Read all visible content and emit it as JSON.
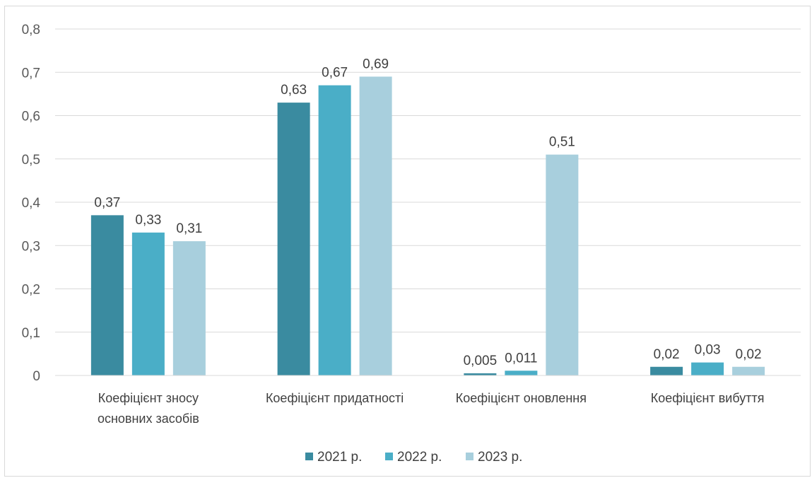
{
  "chart_data": {
    "type": "bar",
    "categories": [
      [
        "Коефіцієнт зносу",
        "основних засобів"
      ],
      [
        "Коефіцієнт придатності"
      ],
      [
        "Коефіцієнт оновлення"
      ],
      [
        "Коефіцієнт вибуття"
      ]
    ],
    "series": [
      {
        "name": "2021 р.",
        "color": "#3a8ba0",
        "values": [
          0.37,
          0.63,
          0.005,
          0.02
        ],
        "labels": [
          "0,37",
          "0,63",
          "0,005",
          "0,02"
        ]
      },
      {
        "name": "2022 р.",
        "color": "#4aaec7",
        "values": [
          0.33,
          0.67,
          0.011,
          0.03
        ],
        "labels": [
          "0,33",
          "0,67",
          "0,011",
          "0,03"
        ]
      },
      {
        "name": "2023 р.",
        "color": "#a8cfdd",
        "values": [
          0.31,
          0.69,
          0.51,
          0.02
        ],
        "labels": [
          "0,31",
          "0,69",
          "0,51",
          "0,02"
        ]
      }
    ],
    "yticks": [
      "0",
      "0,1",
      "0,2",
      "0,3",
      "0,4",
      "0,5",
      "0,6",
      "0,7",
      "0,8"
    ],
    "ylim": [
      0,
      0.8
    ],
    "grid": true,
    "legend": "bottom"
  }
}
